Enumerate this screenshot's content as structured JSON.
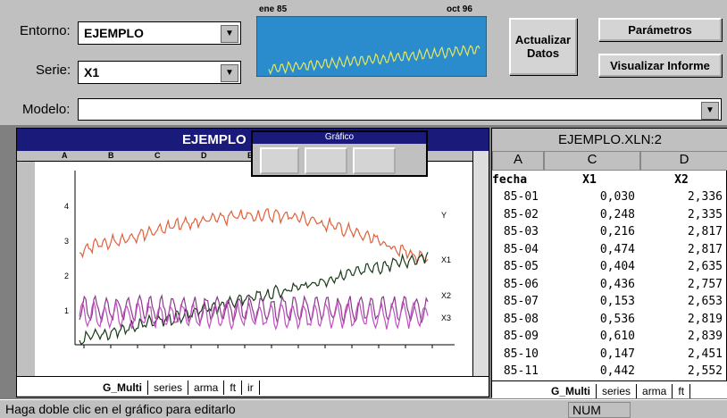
{
  "toolbar": {
    "entorno_label": "Entorno:",
    "entorno_value": "EJEMPLO",
    "serie_label": "Serie:",
    "serie_value": "X1",
    "mini_chart": {
      "start": "ene 85",
      "end": "oct 96"
    },
    "buttons": [
      "Actualizar Datos",
      "Parámetros",
      "Visualizar Informe"
    ],
    "modelo_label": "Modelo:"
  },
  "chart_window": {
    "title": "EJEMPLO",
    "columns": [
      "A",
      "B",
      "C",
      "D",
      "E"
    ],
    "palette_title": "Gráfico",
    "chart": {
      "yticks": [
        "4",
        "3",
        "2",
        "1"
      ],
      "series_labels": [
        "Y",
        "X1",
        "X2",
        "X3"
      ]
    },
    "tabs": [
      "G_Multi",
      "series",
      "arma",
      "ft",
      "ir"
    ]
  },
  "sheet_window": {
    "title": "EJEMPLO.XLN:2",
    "columns": [
      "A",
      "C",
      "D"
    ],
    "header": [
      "fecha",
      "X1",
      "X2"
    ],
    "rows": [
      [
        "85-01",
        "0,030",
        "2,336"
      ],
      [
        "85-02",
        "0,248",
        "2,335"
      ],
      [
        "85-03",
        "0,216",
        "2,817"
      ],
      [
        "85-04",
        "0,474",
        "2,817"
      ],
      [
        "85-05",
        "0,404",
        "2,635"
      ],
      [
        "85-06",
        "0,436",
        "2,757"
      ],
      [
        "85-07",
        "0,153",
        "2,653"
      ],
      [
        "85-08",
        "0,536",
        "2,819"
      ],
      [
        "85-09",
        "0,610",
        "2,839"
      ],
      [
        "85-10",
        "0,147",
        "2,451"
      ],
      [
        "85-11",
        "0,442",
        "2,552"
      ]
    ],
    "tabs": [
      "G_Multi",
      "series",
      "arma",
      "ft"
    ]
  },
  "status": {
    "message": "Haga doble clic en el gráfico para editarlo",
    "indicator": "NUM"
  }
}
